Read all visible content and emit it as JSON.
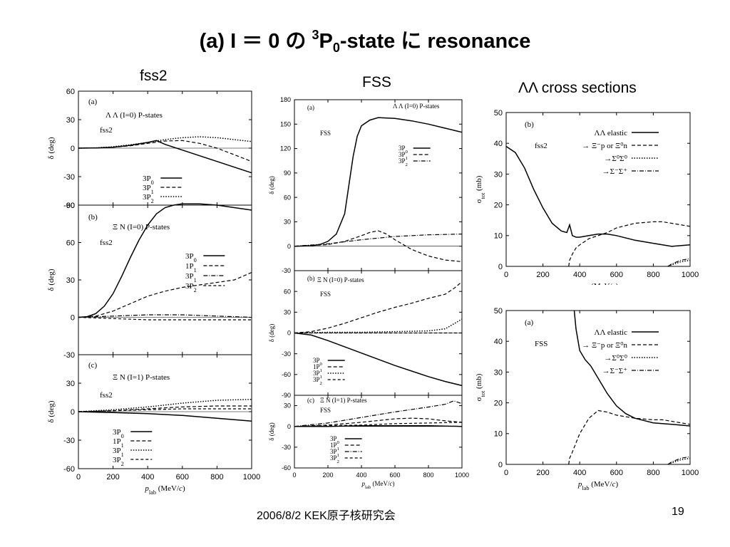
{
  "slide": {
    "title_prefix": "(a) I ＝ 0 の ",
    "title_sup": "3",
    "title_p": "P",
    "title_sub": "0",
    "title_suffix": "-state に resonance",
    "col_fss2": "fss2",
    "col_fss": "FSS",
    "col_cross": "ΛΛ cross sections",
    "footer_date": "2006/8/2  KEK原子核研究会",
    "page_number": "19"
  },
  "chart_data": [
    {
      "id": "fss2-ll",
      "type": "line",
      "label": "(a)",
      "title": "Λ Λ (I=0) P-states",
      "model": "fss2",
      "ylabel": "δ (deg)",
      "xlim": [
        0,
        1000
      ],
      "ylim": [
        -60,
        60
      ],
      "yticks": [
        60,
        30,
        0,
        -30,
        -60
      ],
      "xticks": [],
      "xlabel": "",
      "series": [
        {
          "name": "3P0",
          "dash": "",
          "width": 1.5,
          "x": [
            0,
            100,
            200,
            300,
            400,
            450,
            500,
            600,
            700,
            800,
            900,
            1000
          ],
          "y": [
            0,
            0.2,
            1,
            3,
            6,
            8,
            4,
            -2,
            -8,
            -14,
            -20,
            -26
          ]
        },
        {
          "name": "3P1",
          "dash": "5,3",
          "width": 1.2,
          "x": [
            0,
            100,
            200,
            300,
            400,
            500,
            600,
            700,
            800,
            900,
            1000
          ],
          "y": [
            0,
            0.2,
            1,
            2.5,
            5,
            7.5,
            8,
            5,
            0,
            -7,
            -14
          ]
        },
        {
          "name": "3P2",
          "dash": "1.5,2",
          "width": 1.5,
          "x": [
            0,
            100,
            200,
            300,
            400,
            500,
            600,
            700,
            800,
            900,
            1000
          ],
          "y": [
            0,
            0.3,
            1.5,
            3.5,
            6,
            9,
            11,
            12,
            11,
            9,
            7
          ]
        }
      ]
    },
    {
      "id": "fss2-xn0",
      "type": "line",
      "label": "(b)",
      "title": "Ξ N (I=0) P-states",
      "model": "fss2",
      "ylabel": "δ (deg)",
      "xlim": [
        0,
        1000
      ],
      "ylim": [
        -30,
        90
      ],
      "yticks": [
        90,
        60,
        30,
        0,
        -30
      ],
      "xticks": [],
      "xlabel": "",
      "series": [
        {
          "name": "3P0",
          "dash": "",
          "width": 1.5,
          "x": [
            0,
            50,
            100,
            150,
            200,
            250,
            300,
            350,
            400,
            450,
            500,
            550,
            600,
            700,
            800,
            900,
            1000
          ],
          "y": [
            0,
            0.5,
            3,
            9,
            19,
            33,
            48,
            62,
            74,
            83,
            88,
            90,
            91,
            91,
            90,
            88,
            86
          ]
        },
        {
          "name": "1P1",
          "dash": "5,3",
          "width": 1.2,
          "x": [
            0,
            100,
            200,
            300,
            400,
            500,
            600,
            700,
            800,
            900,
            950,
            1000
          ],
          "y": [
            0,
            1,
            5,
            11,
            17,
            21,
            24,
            26,
            28,
            30,
            33,
            36
          ]
        },
        {
          "name": "3P1",
          "dash": "6,2,1,2",
          "width": 1.2,
          "x": [
            0,
            200,
            400,
            600,
            800,
            1000
          ],
          "y": [
            0,
            1,
            2,
            2,
            1,
            0
          ]
        },
        {
          "name": "3P2",
          "dash": "4,3",
          "width": 1.2,
          "x": [
            0,
            200,
            400,
            600,
            800,
            1000
          ],
          "y": [
            0,
            -1,
            -2,
            -2,
            -2,
            -2
          ]
        }
      ]
    },
    {
      "id": "fss2-xn1",
      "type": "line",
      "label": "(c)",
      "title": "Ξ N (I=1) P-states",
      "model": "fss2",
      "ylabel": "δ (deg)",
      "xlim": [
        0,
        1000
      ],
      "ylim": [
        -60,
        60
      ],
      "yticks": [
        30,
        0,
        -30,
        -60
      ],
      "xticks": [
        0,
        200,
        400,
        600,
        800,
        1000
      ],
      "xlabel": "MeV/c",
      "series": [
        {
          "name": "3P0",
          "dash": "",
          "width": 1.5,
          "x": [
            0,
            200,
            400,
            600,
            800,
            1000
          ],
          "y": [
            0,
            -1,
            -2,
            -4,
            -7,
            -10
          ]
        },
        {
          "name": "1P1",
          "dash": "5,3",
          "width": 1.2,
          "x": [
            0,
            200,
            400,
            600,
            800,
            1000
          ],
          "y": [
            0,
            1,
            3,
            5,
            6,
            6
          ]
        },
        {
          "name": "3P1",
          "dash": "1.5,2",
          "width": 1.5,
          "x": [
            0,
            200,
            400,
            600,
            800,
            1000
          ],
          "y": [
            0,
            2,
            5,
            9,
            12,
            13
          ]
        },
        {
          "name": "3P2",
          "dash": "4,3",
          "width": 1.2,
          "x": [
            0,
            200,
            400,
            600,
            800,
            1000
          ],
          "y": [
            0,
            1,
            2,
            3,
            3,
            3
          ]
        }
      ]
    },
    {
      "id": "fss-ll",
      "type": "line",
      "label": "(a)",
      "title": "Λ Λ (I=0) P-states",
      "model": "FSS",
      "ylabel": "δ (deg)",
      "xlim": [
        0,
        1000
      ],
      "ylim": [
        -30,
        180
      ],
      "yticks": [
        180,
        150,
        120,
        90,
        60,
        30,
        0,
        -30
      ],
      "xticks": [],
      "xlabel": "",
      "series": [
        {
          "name": "3P0",
          "dash": "",
          "width": 1.5,
          "x": [
            0,
            100,
            150,
            200,
            250,
            300,
            325,
            350,
            375,
            400,
            450,
            500,
            600,
            700,
            800,
            900,
            1000
          ],
          "y": [
            0,
            0.5,
            2,
            6,
            15,
            40,
            75,
            110,
            135,
            148,
            155,
            158,
            157,
            154,
            150,
            145,
            140
          ]
        },
        {
          "name": "3P1",
          "dash": "5,3",
          "width": 1.2,
          "x": [
            0,
            200,
            300,
            400,
            450,
            500,
            550,
            600,
            700,
            800,
            900,
            1000
          ],
          "y": [
            0,
            2,
            6,
            13,
            17,
            19,
            15,
            8,
            -4,
            -12,
            -17,
            -19
          ]
        },
        {
          "name": "3P2",
          "dash": "6,2,1,2",
          "width": 1.2,
          "x": [
            0,
            200,
            400,
            600,
            800,
            1000
          ],
          "y": [
            0,
            3,
            8,
            12,
            14,
            15
          ]
        }
      ]
    },
    {
      "id": "fss-xn0",
      "type": "line",
      "label": "(b)",
      "title": "Ξ N (I=0) P-states",
      "model": "FSS",
      "ylabel": "δ (deg)",
      "xlim": [
        0,
        1000
      ],
      "ylim": [
        -90,
        90
      ],
      "yticks": [
        60,
        30,
        0,
        -30,
        -60,
        -90
      ],
      "xticks": [],
      "xlabel": "",
      "series": [
        {
          "name": "3P0",
          "dash": "",
          "width": 1.5,
          "x": [
            0,
            100,
            200,
            300,
            400,
            500,
            600,
            700,
            800,
            900,
            1000
          ],
          "y": [
            0,
            -3,
            -11,
            -20,
            -29,
            -38,
            -47,
            -55,
            -63,
            -70,
            -76
          ]
        },
        {
          "name": "1P1",
          "dash": "5,3",
          "width": 1.2,
          "x": [
            0,
            100,
            200,
            300,
            400,
            500,
            600,
            700,
            800,
            900,
            950,
            1000
          ],
          "y": [
            0,
            2,
            7,
            14,
            22,
            30,
            37,
            43,
            50,
            56,
            64,
            74
          ]
        },
        {
          "name": "3P1",
          "dash": "1.5,2",
          "width": 1.5,
          "x": [
            0,
            200,
            400,
            600,
            800,
            900,
            1000
          ],
          "y": [
            0,
            1,
            1,
            2,
            3,
            6,
            20
          ]
        },
        {
          "name": "3P2",
          "dash": "4,3",
          "width": 1.2,
          "x": [
            0,
            200,
            400,
            600,
            800,
            1000
          ],
          "y": [
            0,
            0,
            0,
            0,
            0,
            0
          ]
        }
      ]
    },
    {
      "id": "fss-xn1",
      "type": "line",
      "label": "(c)",
      "title": "Ξ N (I=1) P-states",
      "model": "FSS",
      "ylabel": "δ (deg)",
      "xlim": [
        0,
        1000
      ],
      "ylim": [
        -60,
        45
      ],
      "yticks": [
        30,
        0,
        -30,
        -60
      ],
      "xticks": [
        0,
        200,
        400,
        600,
        800,
        1000
      ],
      "xlabel": "MeV/c",
      "series": [
        {
          "name": "3P0",
          "dash": "",
          "width": 1.5,
          "x": [
            0,
            200,
            400,
            600,
            800,
            1000
          ],
          "y": [
            0,
            0,
            1,
            1,
            1,
            0
          ]
        },
        {
          "name": "1P1",
          "dash": "5,3",
          "width": 1.2,
          "x": [
            0,
            200,
            400,
            600,
            700,
            800,
            900,
            1000
          ],
          "y": [
            0,
            2,
            6,
            11,
            12,
            11,
            8,
            6
          ]
        },
        {
          "name": "3P1",
          "dash": "6,2,1,2",
          "width": 1.2,
          "x": [
            0,
            200,
            400,
            600,
            800,
            900,
            950,
            1000
          ],
          "y": [
            0,
            5,
            13,
            21,
            28,
            32,
            37,
            33
          ]
        },
        {
          "name": "3P2",
          "dash": "4,3",
          "width": 1.2,
          "x": [
            0,
            200,
            400,
            600,
            800,
            1000
          ],
          "y": [
            0,
            1,
            2,
            4,
            5,
            6
          ]
        }
      ]
    },
    {
      "id": "cross-fss2",
      "type": "line",
      "label": "(b)",
      "model": "fss2",
      "ylabel": "σ_tot (mb)",
      "xlim": [
        0,
        1000
      ],
      "ylim": [
        0,
        50
      ],
      "yticks": [
        50,
        40,
        30,
        20,
        10,
        0
      ],
      "xticks": [
        0,
        200,
        400,
        600,
        800,
        1000
      ],
      "xlabel": "MeV/c",
      "series": [
        {
          "name": "ΛΛ elastic",
          "dash": "",
          "width": 1.5,
          "x": [
            0,
            50,
            100,
            150,
            200,
            250,
            300,
            330,
            345,
            360,
            380,
            400,
            450,
            500,
            550,
            600,
            700,
            800,
            900,
            1000
          ],
          "y": [
            39,
            37,
            32,
            25,
            19,
            14,
            11.5,
            11,
            13.5,
            10,
            9.5,
            9.5,
            10,
            10.5,
            10.5,
            10,
            8.5,
            7.5,
            6.5,
            7
          ]
        },
        {
          "name": "→ Ξ⁻p or Ξ⁰n",
          "dash": "5,3",
          "width": 1.2,
          "x": [
            340,
            345,
            360,
            380,
            400,
            450,
            500,
            550,
            600,
            700,
            800,
            850,
            900,
            950,
            1000
          ],
          "y": [
            0,
            2,
            4,
            6,
            7,
            9,
            10,
            11,
            12.5,
            14,
            14.5,
            14.5,
            14,
            13.5,
            13
          ]
        },
        {
          "name": "→Σ⁰Σ⁰",
          "dash": "1.5,2",
          "width": 1.5,
          "x": [
            880,
            900,
            950,
            1000
          ],
          "y": [
            0,
            0.5,
            1.5,
            2
          ]
        },
        {
          "name": "→Σ⁻Σ⁺",
          "dash": "6,2,1,2",
          "width": 1.2,
          "x": [
            880,
            900,
            950,
            1000
          ],
          "y": [
            0,
            0.8,
            2,
            2.5
          ]
        }
      ]
    },
    {
      "id": "cross-fss",
      "type": "line",
      "label": "(a)",
      "model": "FSS",
      "ylabel": "σ_tot (mb)",
      "xlim": [
        0,
        1000
      ],
      "ylim": [
        0,
        50
      ],
      "yticks": [
        50,
        40,
        30,
        20,
        10,
        0
      ],
      "xticks": [
        0,
        200,
        400,
        600,
        800,
        1000
      ],
      "xlabel": "MeV/c",
      "series": [
        {
          "name": "ΛΛ elastic",
          "dash": "",
          "width": 1.5,
          "x": [
            370,
            380,
            400,
            430,
            460,
            500,
            550,
            600,
            650,
            700,
            800,
            900,
            1000
          ],
          "y": [
            50,
            44,
            37,
            34,
            32,
            28,
            23,
            19,
            16.5,
            15,
            13.5,
            13,
            12.5
          ]
        },
        {
          "name": "→ Ξ⁻p or Ξ⁰n",
          "dash": "5,3",
          "width": 1.2,
          "x": [
            340,
            345,
            360,
            400,
            450,
            500,
            550,
            600,
            700,
            800,
            850,
            900,
            1000
          ],
          "y": [
            0,
            2,
            4,
            10,
            15,
            17.5,
            17,
            16,
            15,
            14.5,
            14.5,
            14,
            13
          ]
        },
        {
          "name": "→Σ⁰Σ⁰",
          "dash": "1.5,2",
          "width": 1.5,
          "x": [
            880,
            900,
            950,
            1000
          ],
          "y": [
            0,
            0.5,
            1.5,
            2
          ]
        },
        {
          "name": "→Σ⁻Σ⁺",
          "dash": "6,2,1,2",
          "width": 1.2,
          "x": [
            880,
            900,
            950,
            1000
          ],
          "y": [
            0,
            0.8,
            2,
            2.5
          ]
        }
      ]
    }
  ]
}
